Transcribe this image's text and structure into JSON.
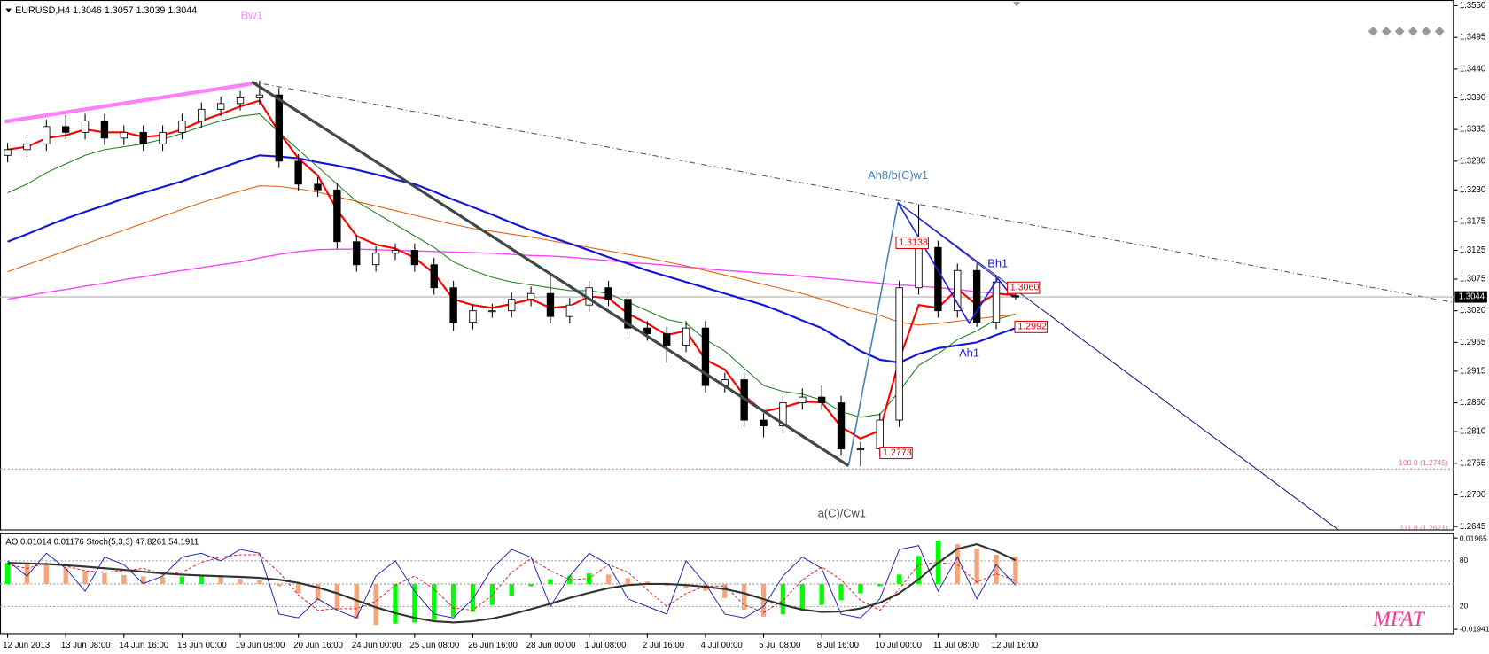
{
  "window": {
    "symbol": "EURUSD,H4"
  },
  "chart_data": {
    "type": "candlestick",
    "categories": [
      "12 Jun 2013",
      null,
      null,
      "13 Jun 08:00",
      null,
      null,
      "14 Jun 16:00",
      null,
      null,
      "18 Jun 00:00",
      null,
      null,
      "19 Jun 08:00",
      null,
      null,
      "20 Jun 16:00",
      null,
      null,
      "24 Jun 00:00",
      null,
      null,
      "25 Jun 08:00",
      null,
      null,
      "26 Jun 16:00",
      null,
      null,
      "28 Jun 00:00",
      null,
      null,
      "1 Jul 08:00",
      null,
      null,
      "2 Jul 16:00",
      null,
      null,
      "4 Jul 00:00",
      null,
      null,
      "5 Jul 08:00",
      null,
      null,
      "8 Jul 16:00",
      null,
      null,
      "10 Jul 00:00",
      null,
      null,
      "11 Jul 08:00",
      null,
      null,
      "12 Jul 16:00",
      null
    ],
    "ohlc": [
      [
        1.329,
        1.3312,
        1.3278,
        1.33
      ],
      [
        1.33,
        1.3322,
        1.3288,
        1.331
      ],
      [
        1.331,
        1.3352,
        1.3298,
        1.334
      ],
      [
        1.334,
        1.336,
        1.3318,
        1.333
      ],
      [
        1.333,
        1.3362,
        1.3318,
        1.335
      ],
      [
        1.335,
        1.3362,
        1.3308,
        1.332
      ],
      [
        1.332,
        1.3342,
        1.3308,
        1.333
      ],
      [
        1.333,
        1.3342,
        1.3298,
        1.331
      ],
      [
        1.331,
        1.3342,
        1.3298,
        1.333
      ],
      [
        1.333,
        1.3362,
        1.3318,
        1.335
      ],
      [
        1.335,
        1.3382,
        1.3338,
        1.337
      ],
      [
        1.337,
        1.3392,
        1.3358,
        1.338
      ],
      [
        1.338,
        1.3402,
        1.3368,
        1.339
      ],
      [
        1.339,
        1.342,
        1.3378,
        1.3395
      ],
      [
        1.3395,
        1.3407,
        1.3268,
        1.328
      ],
      [
        1.328,
        1.3292,
        1.3228,
        1.324
      ],
      [
        1.324,
        1.3252,
        1.3218,
        1.323
      ],
      [
        1.323,
        1.3242,
        1.3128,
        1.314
      ],
      [
        1.314,
        1.3152,
        1.3088,
        1.31
      ],
      [
        1.31,
        1.3132,
        1.3088,
        1.312
      ],
      [
        1.312,
        1.3137,
        1.3108,
        1.3125
      ],
      [
        1.3125,
        1.3137,
        1.3088,
        1.31
      ],
      [
        1.31,
        1.3112,
        1.3048,
        1.306
      ],
      [
        1.306,
        1.3072,
        1.2985,
        1.3
      ],
      [
        1.3,
        1.3032,
        1.2988,
        1.302
      ],
      [
        1.302,
        1.3032,
        1.3008,
        1.302
      ],
      [
        1.302,
        1.3052,
        1.3008,
        1.304
      ],
      [
        1.304,
        1.3062,
        1.3028,
        1.305
      ],
      [
        1.305,
        1.3085,
        1.2998,
        1.301
      ],
      [
        1.301,
        1.3042,
        1.2998,
        1.303
      ],
      [
        1.303,
        1.3072,
        1.3018,
        1.306
      ],
      [
        1.306,
        1.3072,
        1.3028,
        1.304
      ],
      [
        1.304,
        1.3052,
        1.2978,
        1.299
      ],
      [
        1.299,
        1.3002,
        1.2968,
        1.298
      ],
      [
        1.298,
        1.2992,
        1.293,
        1.296
      ],
      [
        1.296,
        1.3002,
        1.2948,
        1.299
      ],
      [
        1.299,
        1.3002,
        1.2878,
        1.289
      ],
      [
        1.289,
        1.2912,
        1.2878,
        1.29
      ],
      [
        1.29,
        1.2912,
        1.2818,
        1.283
      ],
      [
        1.283,
        1.2842,
        1.28,
        1.282
      ],
      [
        1.282,
        1.2872,
        1.2808,
        1.286
      ],
      [
        1.286,
        1.2885,
        1.2848,
        1.287
      ],
      [
        1.287,
        1.289,
        1.2848,
        1.286
      ],
      [
        1.286,
        1.2872,
        1.2768,
        1.278
      ],
      [
        1.278,
        1.2792,
        1.275,
        1.278
      ],
      [
        1.278,
        1.2842,
        1.2768,
        1.283
      ],
      [
        1.283,
        1.3072,
        1.2818,
        1.306
      ],
      [
        1.306,
        1.3205,
        1.3048,
        1.313
      ],
      [
        1.313,
        1.3142,
        1.3008,
        1.302
      ],
      [
        1.302,
        1.3102,
        1.3008,
        1.309
      ],
      [
        1.309,
        1.3102,
        1.2992,
        1.3
      ],
      [
        1.3,
        1.3082,
        1.2988,
        1.307
      ],
      [
        1.3046,
        1.3057,
        1.3039,
        1.3044
      ]
    ],
    "ylim": [
      1.264,
      1.3555
    ],
    "yticks": [
      {
        "value": 1.355,
        "label": "1.3550"
      },
      1.3495,
      {
        "value": 1.344,
        "label": "1.3440"
      },
      {
        "value": 1.339,
        "label": "1.3390"
      },
      1.3335,
      {
        "value": 1.328,
        "label": "1.3280"
      },
      {
        "value": 1.323,
        "label": "1.3230"
      },
      1.3175,
      1.3125,
      1.3075,
      {
        "value": 1.302,
        "label": "1.3020"
      },
      1.2965,
      1.2915,
      {
        "value": 1.286,
        "label": "1.2860"
      },
      {
        "value": 1.281,
        "label": "1.2810"
      },
      1.2755,
      {
        "value": 1.27,
        "label": "1.2700"
      },
      1.2645
    ],
    "ma_lines": [
      {
        "color": "#ff40ff",
        "width": 1.3,
        "values": [
          1.304,
          1.3046,
          1.3052,
          1.3057,
          1.3063,
          1.3068,
          1.3074,
          1.3079,
          1.3085,
          1.309,
          1.3095,
          1.31,
          1.3105,
          1.3112,
          1.3118,
          1.3123,
          1.3126,
          1.3127,
          1.3127,
          1.3126,
          1.3125,
          1.3124,
          1.3123,
          1.3122,
          1.3121,
          1.312,
          1.3118,
          1.3116,
          1.3115,
          1.3113,
          1.311,
          1.3107,
          1.3104,
          1.3102,
          1.3099,
          1.3096,
          1.3093,
          1.309,
          1.3088,
          1.3085,
          1.3083,
          1.308,
          1.3077,
          1.3074,
          1.3071,
          1.3068,
          1.3065,
          1.3063,
          1.306,
          1.3057,
          1.3053,
          1.305,
          1.3047
        ]
      },
      {
        "color": "#e06010",
        "width": 1,
        "values": [
          1.3088,
          1.31,
          1.3112,
          1.3124,
          1.3136,
          1.3148,
          1.316,
          1.3172,
          1.3184,
          1.3196,
          1.3208,
          1.3218,
          1.3228,
          1.3237,
          1.3236,
          1.3232,
          1.3226,
          1.3218,
          1.321,
          1.3202,
          1.3194,
          1.3186,
          1.3178,
          1.317,
          1.3163,
          1.3158,
          1.3153,
          1.3148,
          1.3142,
          1.3136,
          1.313,
          1.3124,
          1.3118,
          1.3112,
          1.3105,
          1.3098,
          1.309,
          1.3082,
          1.3074,
          1.3066,
          1.3058,
          1.305,
          1.304,
          1.303,
          1.302,
          1.3012,
          1.3,
          1.2995,
          1.2998,
          1.3002,
          1.3006,
          1.301,
          1.3014
        ]
      },
      {
        "color": "#1515d8",
        "width": 2,
        "values": [
          1.314,
          1.3153,
          1.3167,
          1.318,
          1.3192,
          1.3203,
          1.3215,
          1.3225,
          1.3235,
          1.3245,
          1.3257,
          1.3268,
          1.328,
          1.329,
          1.3288,
          1.3285,
          1.3278,
          1.3272,
          1.3265,
          1.3257,
          1.3248,
          1.324,
          1.3227,
          1.3213,
          1.32,
          1.3187,
          1.3173,
          1.316,
          1.3148,
          1.3137,
          1.3125,
          1.3113,
          1.3102,
          1.309,
          1.308,
          1.307,
          1.306,
          1.305,
          1.304,
          1.303,
          1.3017,
          1.3003,
          1.299,
          1.297,
          1.295,
          1.2935,
          1.293,
          1.2945,
          1.2955,
          1.296,
          1.2965,
          1.2978,
          1.299
        ]
      },
      {
        "color": "#208020",
        "width": 1,
        "values": [
          1.3225,
          1.324,
          1.326,
          1.3275,
          1.329,
          1.33,
          1.3305,
          1.331,
          1.3318,
          1.3328,
          1.334,
          1.335,
          1.3358,
          1.3362,
          1.333,
          1.33,
          1.327,
          1.324,
          1.321,
          1.319,
          1.317,
          1.315,
          1.313,
          1.3105,
          1.309,
          1.3078,
          1.307,
          1.3065,
          1.306,
          1.3055,
          1.3055,
          1.305,
          1.3035,
          1.302,
          1.3005,
          1.2998,
          1.297,
          1.295,
          1.292,
          1.289,
          1.288,
          1.2875,
          1.2865,
          1.2845,
          1.2835,
          1.284,
          1.288,
          1.2925,
          1.2945,
          1.297,
          1.2985,
          1.3005,
          1.3014
        ]
      },
      {
        "color": "#ff0000",
        "width": 2,
        "values": [
          1.33,
          1.3305,
          1.332,
          1.3325,
          1.3335,
          1.333,
          1.333,
          1.3322,
          1.3325,
          1.3335,
          1.335,
          1.3362,
          1.3375,
          1.3385,
          1.333,
          1.3285,
          1.3255,
          1.3195,
          1.315,
          1.3135,
          1.3128,
          1.3112,
          1.3085,
          1.304,
          1.303,
          1.3025,
          1.3032,
          1.304,
          1.3025,
          1.3028,
          1.3045,
          1.3042,
          1.3015,
          1.2998,
          1.2978,
          1.2985,
          1.2935,
          1.2918,
          1.2872,
          1.2845,
          1.2852,
          1.2862,
          1.2861,
          1.2818,
          1.2798,
          1.2812,
          1.2935,
          1.303,
          1.3025,
          1.3058,
          1.303,
          1.305,
          1.3047
        ]
      }
    ],
    "annotations": [
      "Bw1",
      "Ah8/b(C)w1",
      "Bh1",
      "Ah1",
      "a(C)/Cw1"
    ],
    "price_labels": [
      {
        "value": 1.3138,
        "label": "1.3138"
      },
      {
        "value": 1.306,
        "label": "1.3060"
      },
      {
        "value": 1.2992,
        "label": "1.2992"
      },
      {
        "value": 1.2773,
        "label": "1.2773"
      }
    ],
    "fib_levels": [
      {
        "value": 1.2745,
        "label": "100.0 (1.2745)"
      },
      {
        "value": 1.2621,
        "label": "111.8 (1.2621)"
      }
    ],
    "watermark": "MFAT"
  },
  "indicator": {
    "type": "oscillator",
    "ao_label": "AO",
    "stoch_label": "Stoch(5,3,3)",
    "ylim": [
      -0.01941,
      0.01965
    ],
    "yticks": [
      -0.01941,
      0.01965
    ],
    "stoch_lim": [
      -10,
      110
    ],
    "stoch_levels": [
      80,
      20
    ],
    "ao_colors": [
      "#00ff00",
      "#f4a57c"
    ],
    "ao": [
      0.009,
      0.0085,
      0.008,
      0.007,
      0.0055,
      0.0045,
      0.0038,
      0.0032,
      0.003,
      0.0032,
      0.0035,
      0.003,
      0.0022,
      0.0015,
      -0.001,
      -0.004,
      -0.007,
      -0.011,
      -0.015,
      -0.0175,
      -0.017,
      -0.0165,
      -0.0155,
      -0.014,
      -0.012,
      -0.009,
      -0.005,
      -0.001,
      0.002,
      0.0035,
      0.0045,
      0.004,
      0.0025,
      0.001,
      -0.0008,
      -0.002,
      -0.003,
      -0.006,
      -0.011,
      -0.014,
      -0.013,
      -0.0115,
      -0.009,
      -0.007,
      -0.004,
      -0.001,
      0.004,
      0.012,
      0.0186,
      0.017,
      0.015,
      0.0125,
      0.01176
    ],
    "ao_signal": [
      0.009,
      0.0088,
      0.0085,
      0.008,
      0.0074,
      0.0067,
      0.006,
      0.0052,
      0.0045,
      0.004,
      0.0036,
      0.0033,
      0.003,
      0.0026,
      0.0018,
      0.0005,
      -0.0015,
      -0.004,
      -0.007,
      -0.01,
      -0.0125,
      -0.0145,
      -0.016,
      -0.0165,
      -0.016,
      -0.0148,
      -0.013,
      -0.0108,
      -0.0085,
      -0.006,
      -0.0038,
      -0.0018,
      -0.0005,
      0,
      0,
      -0.0005,
      -0.0012,
      -0.0022,
      -0.004,
      -0.0065,
      -0.009,
      -0.011,
      -0.012,
      -0.0118,
      -0.0105,
      -0.008,
      -0.004,
      0.002,
      0.009,
      0.015,
      0.017,
      0.014,
      0.01014
    ],
    "stoch_main": [
      80,
      60,
      90,
      70,
      40,
      85,
      75,
      50,
      60,
      85,
      90,
      80,
      95,
      90,
      10,
      5,
      30,
      15,
      5,
      60,
      80,
      40,
      10,
      5,
      30,
      70,
      95,
      85,
      20,
      60,
      90,
      75,
      30,
      20,
      10,
      80,
      50,
      10,
      5,
      20,
      60,
      85,
      70,
      10,
      5,
      30,
      95,
      100,
      40,
      85,
      30,
      75,
      47.8261
    ],
    "stoch_signal": [
      75,
      70,
      77,
      73,
      67,
      65,
      67,
      70,
      62,
      65,
      78,
      85,
      88,
      88,
      65,
      35,
      15,
      17,
      17,
      27,
      48,
      60,
      43,
      18,
      15,
      35,
      65,
      83,
      67,
      55,
      57,
      75,
      65,
      42,
      20,
      37,
      47,
      47,
      22,
      12,
      28,
      55,
      72,
      55,
      28,
      15,
      43,
      75,
      78,
      75,
      52,
      63,
      54.1911
    ]
  }
}
